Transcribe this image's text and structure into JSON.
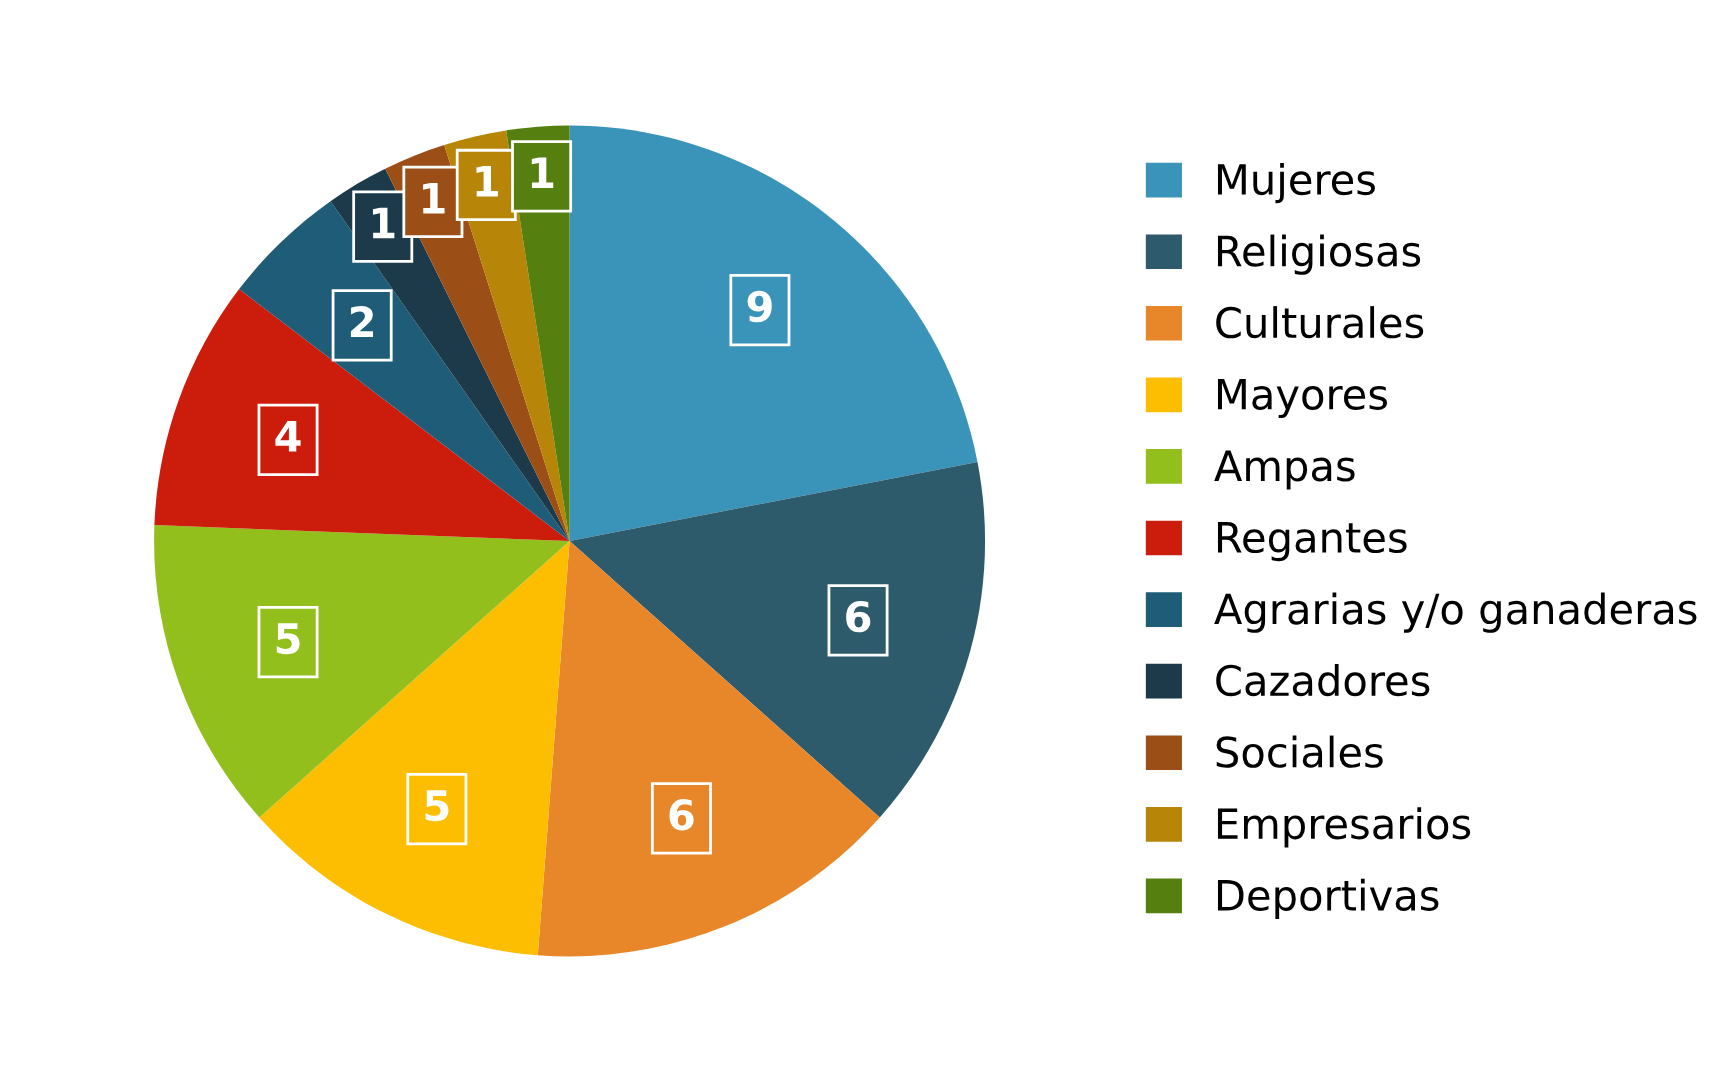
{
  "chart_data": {
    "type": "pie",
    "categories": [
      "Mujeres",
      "Religiosas",
      "Culturales",
      "Mayores",
      "Ampas",
      "Regantes",
      "Agrarias y/o ganaderas",
      "Cazadores",
      "Sociales",
      "Empresarios",
      "Deportivas"
    ],
    "values": [
      9,
      6,
      6,
      5,
      5,
      4,
      2,
      1,
      1,
      1,
      1
    ],
    "colors": [
      "#3a93b8",
      "#2e5b6b",
      "#e8862a",
      "#fdbd00",
      "#93bf1c",
      "#cc1d0c",
      "#1f5c78",
      "#1d3a4a",
      "#9b4f16",
      "#b78508",
      "#55800f"
    ],
    "data_labels": true,
    "legend": "right"
  }
}
